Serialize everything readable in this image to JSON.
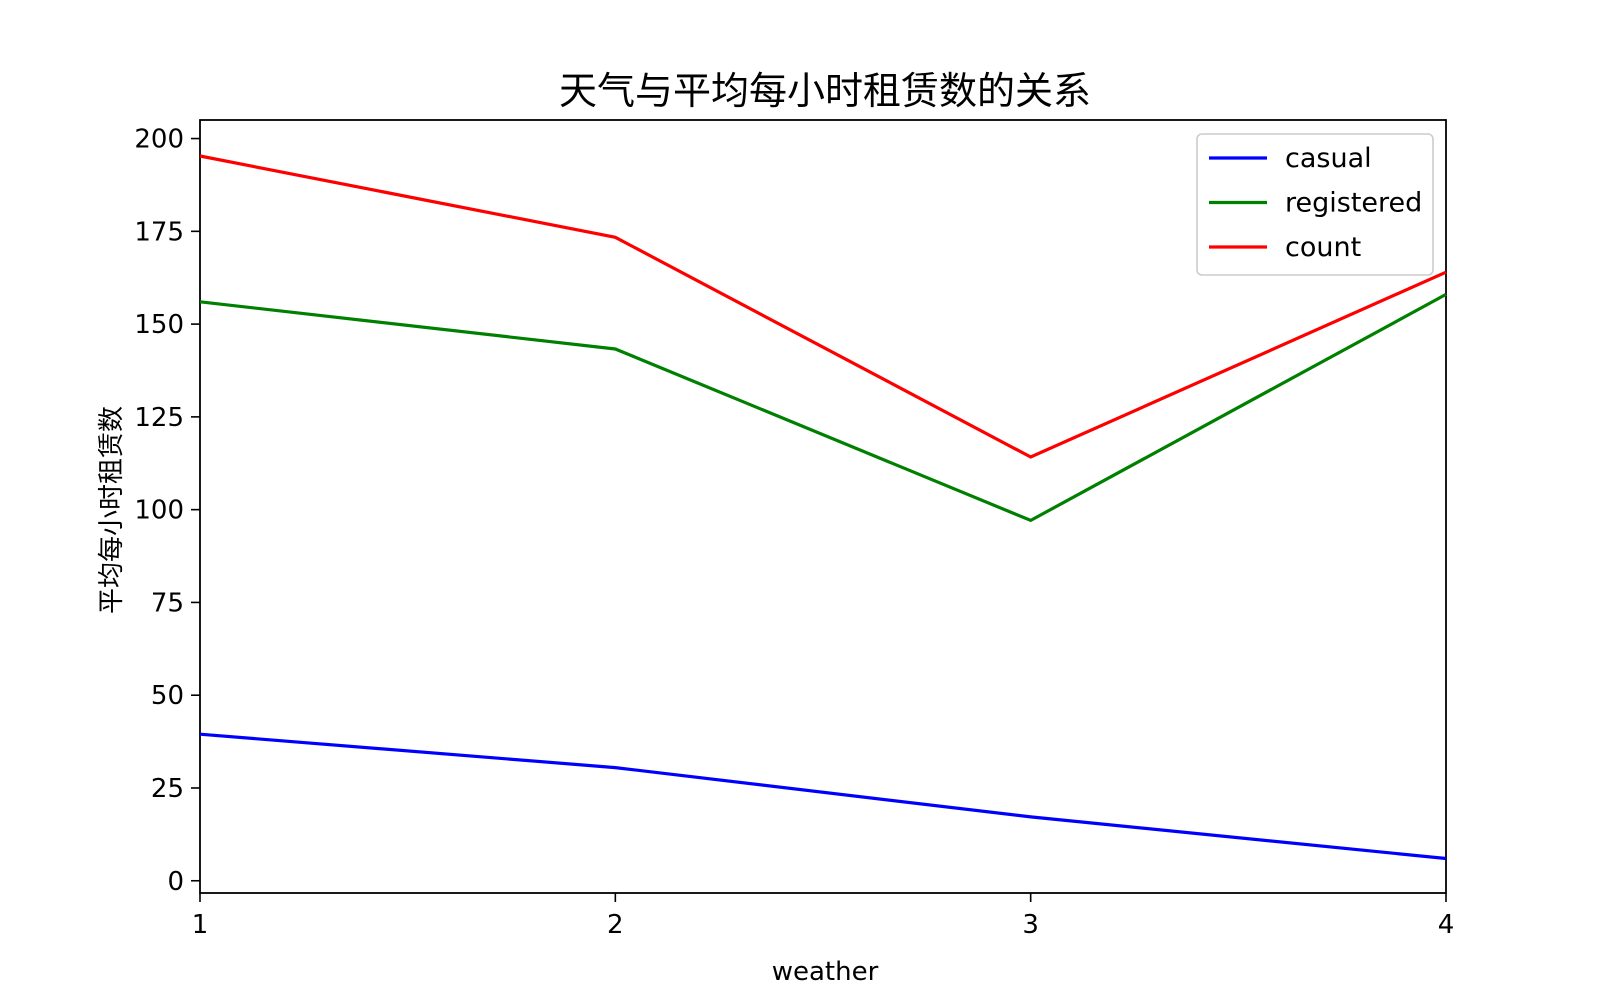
{
  "chart_data": {
    "type": "line",
    "title": "天气与平均每小时租赁数的关系",
    "xlabel": "weather",
    "ylabel": "平均每小时租赁数",
    "x": [
      1,
      2,
      3,
      4
    ],
    "xlim": [
      1,
      4
    ],
    "ylim": [
      -3.3,
      205
    ],
    "xticks": [
      "1",
      "2",
      "3",
      "4"
    ],
    "yticks": [
      0,
      25,
      50,
      75,
      100,
      125,
      150,
      175,
      200
    ],
    "grid": false,
    "legend_position": "top-right",
    "series": [
      {
        "name": "casual",
        "color": "#0000ff",
        "values": [
          39.5,
          30.5,
          17.2,
          6.0
        ]
      },
      {
        "name": "registered",
        "color": "#008000",
        "values": [
          156.0,
          143.3,
          97.1,
          158.0
        ]
      },
      {
        "name": "count",
        "color": "#ff0000",
        "values": [
          195.3,
          173.4,
          114.2,
          164.0
        ]
      }
    ]
  }
}
